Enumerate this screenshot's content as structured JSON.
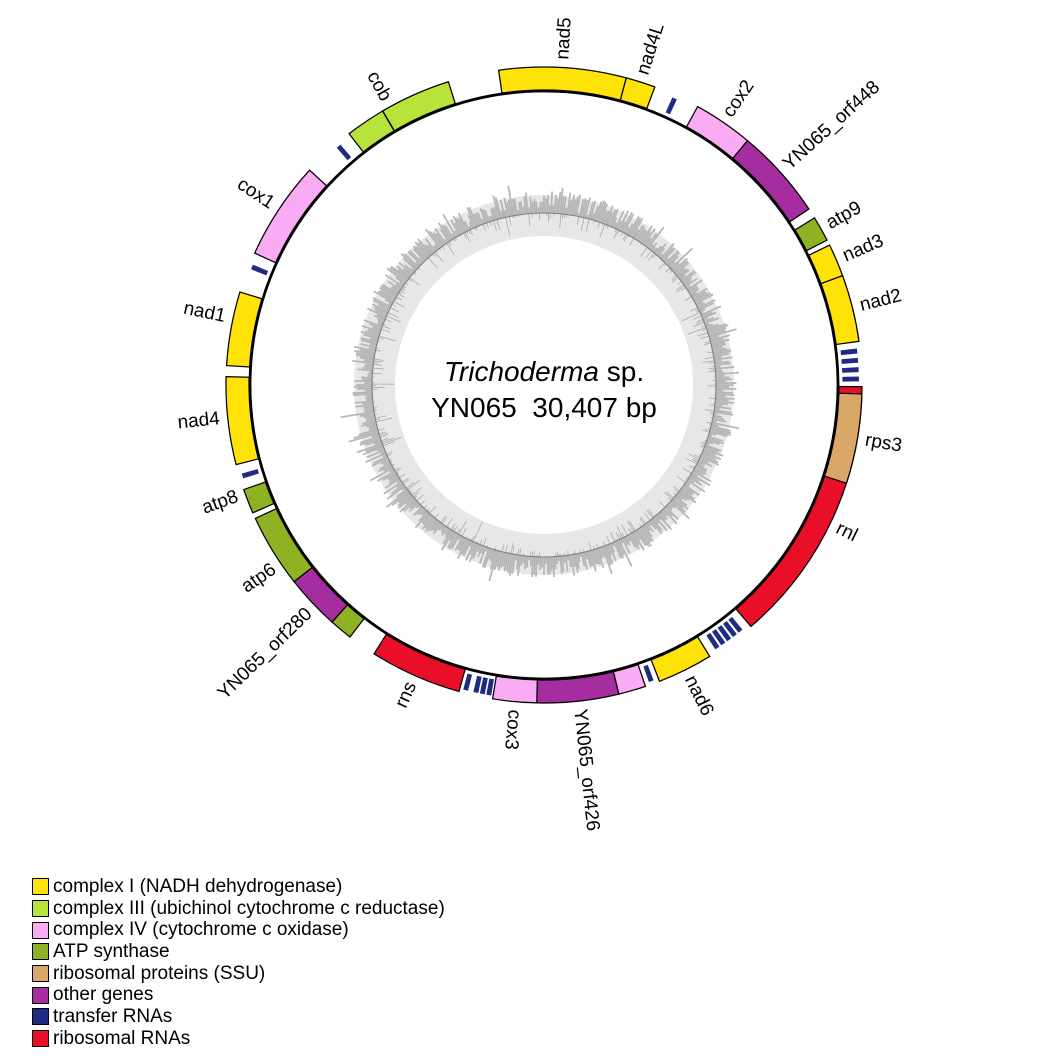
{
  "figure": {
    "organism_italic": "Trichoderma",
    "organism_suffix": " sp.",
    "size_line": "YN065  30,407 bp"
  },
  "palette": {
    "complex_i": "#ffe308",
    "complex_iii": "#b8e33a",
    "complex_iv": "#f9abf3",
    "atp": "#8fb222",
    "ssu": "#d9a768",
    "other": "#a52da0",
    "trna": "#1e2b80",
    "rrna": "#e90f28",
    "gc_band": "#e7e7e7",
    "gc_bars": "#b5b5b5",
    "gc_baseline": "#7f7f7f",
    "circle_stroke": "#000000"
  },
  "plot": {
    "genes": [
      {
        "name": "nad5",
        "label": "nad5",
        "category": "complex_i",
        "start": 351.8,
        "end": 375.0,
        "label_angle": 3.4
      },
      {
        "name": "nad4L",
        "label": "nad4L",
        "category": "complex_i",
        "start": 375.0,
        "end": 380.4,
        "label_angle": 17.7
      },
      {
        "name": "cox2",
        "label": "cox2",
        "category": "complex_iv",
        "start": 28.9,
        "end": 39.8,
        "label_angle": 34.3
      },
      {
        "name": "YN065_orf448",
        "label": "YN065_orf448",
        "category": "other",
        "start": 39.8,
        "end": 56.4,
        "label_angle": 48.0
      },
      {
        "name": "atp9",
        "label": "atp9",
        "category": "atp",
        "start": 58.3,
        "end": 62.9,
        "label_angle": 60.6
      },
      {
        "name": "nad3",
        "label": "nad3",
        "category": "complex_i",
        "start": 63.9,
        "end": 69.9,
        "label_angle": 66.9
      },
      {
        "name": "nad2",
        "label": "nad2",
        "category": "complex_i",
        "start": 69.9,
        "end": 82.1,
        "label_angle": 76.0
      },
      {
        "name": "rnl",
        "label": "rnl",
        "category": "rrna",
        "start": 90.3,
        "end": 139.4,
        "label_angle": 116.0
      },
      {
        "name": "rps3",
        "label": "rps3",
        "category": "ssu",
        "start": 91.6,
        "end": 108.0,
        "label_angle": 99.8
      },
      {
        "name": "nad6",
        "label": "nad6",
        "category": "complex_i",
        "start": 148.6,
        "end": 158.7,
        "label_angle": 153.6
      },
      {
        "name": "cox3_exon",
        "label": "",
        "category": "complex_iv",
        "start": 161.4,
        "end": 166.4
      },
      {
        "name": "YN065_orf426",
        "label": "YN065_orf426",
        "category": "other",
        "start": 166.4,
        "end": 181.3,
        "label_angle": 173.8
      },
      {
        "name": "cox3",
        "label": "cox3",
        "category": "complex_iv",
        "start": 181.3,
        "end": 189.3,
        "label_angle": 185.3
      },
      {
        "name": "rns",
        "label": "rns",
        "category": "rrna",
        "start": 195.5,
        "end": 212.3,
        "label_angle": 203.9
      },
      {
        "name": "atp6_exon",
        "label": "",
        "category": "atp",
        "start": 217.6,
        "end": 221.8
      },
      {
        "name": "YN065_orf280",
        "label": "YN065_orf280",
        "category": "other",
        "start": 221.8,
        "end": 231.8,
        "label_angle": 226.0
      },
      {
        "name": "atp6",
        "label": "atp6",
        "category": "atp",
        "start": 231.8,
        "end": 245.2,
        "label_angle": 235.8
      },
      {
        "name": "atp8",
        "label": "atp8",
        "category": "atp",
        "start": 246.3,
        "end": 250.8,
        "label_angle": 250.0
      },
      {
        "name": "nad4",
        "label": "nad4",
        "category": "complex_i",
        "start": 255.5,
        "end": 271.5,
        "label_angle": 264.0
      },
      {
        "name": "nad1",
        "label": "nad1",
        "category": "complex_i",
        "start": 273.5,
        "end": 287.0,
        "label_angle": 282.0
      },
      {
        "name": "cox1",
        "label": "cox1",
        "category": "complex_iv",
        "start": 294.5,
        "end": 312.5,
        "label_angle": 303.5
      },
      {
        "name": "cob",
        "label": "cob",
        "category": "complex_iii",
        "start": 322.2,
        "end": 342.5,
        "label_angle": 331.0,
        "divider": 329.5
      }
    ],
    "trna_ticks_deg": [
      24.5,
      83.8,
      85.5,
      87.2,
      88.9,
      141.4,
      142.7,
      144.0,
      145.3,
      146.6,
      160.1,
      190.1,
      191.3,
      192.5,
      194.4,
      253.2,
      292.0,
      319.3
    ]
  },
  "legend": [
    {
      "key": "complex_i",
      "label": "complex I (NADH dehydrogenase)"
    },
    {
      "key": "complex_iii",
      "label": "complex III (ubichinol cytochrome c reductase)"
    },
    {
      "key": "complex_iv",
      "label": "complex IV (cytochrome c oxidase)"
    },
    {
      "key": "atp",
      "label": "ATP synthase"
    },
    {
      "key": "ssu",
      "label": "ribosomal proteins (SSU)"
    },
    {
      "key": "other",
      "label": "other genes"
    },
    {
      "key": "trna",
      "label": "transfer RNAs"
    },
    {
      "key": "rrna",
      "label": "ribosomal RNAs"
    }
  ]
}
